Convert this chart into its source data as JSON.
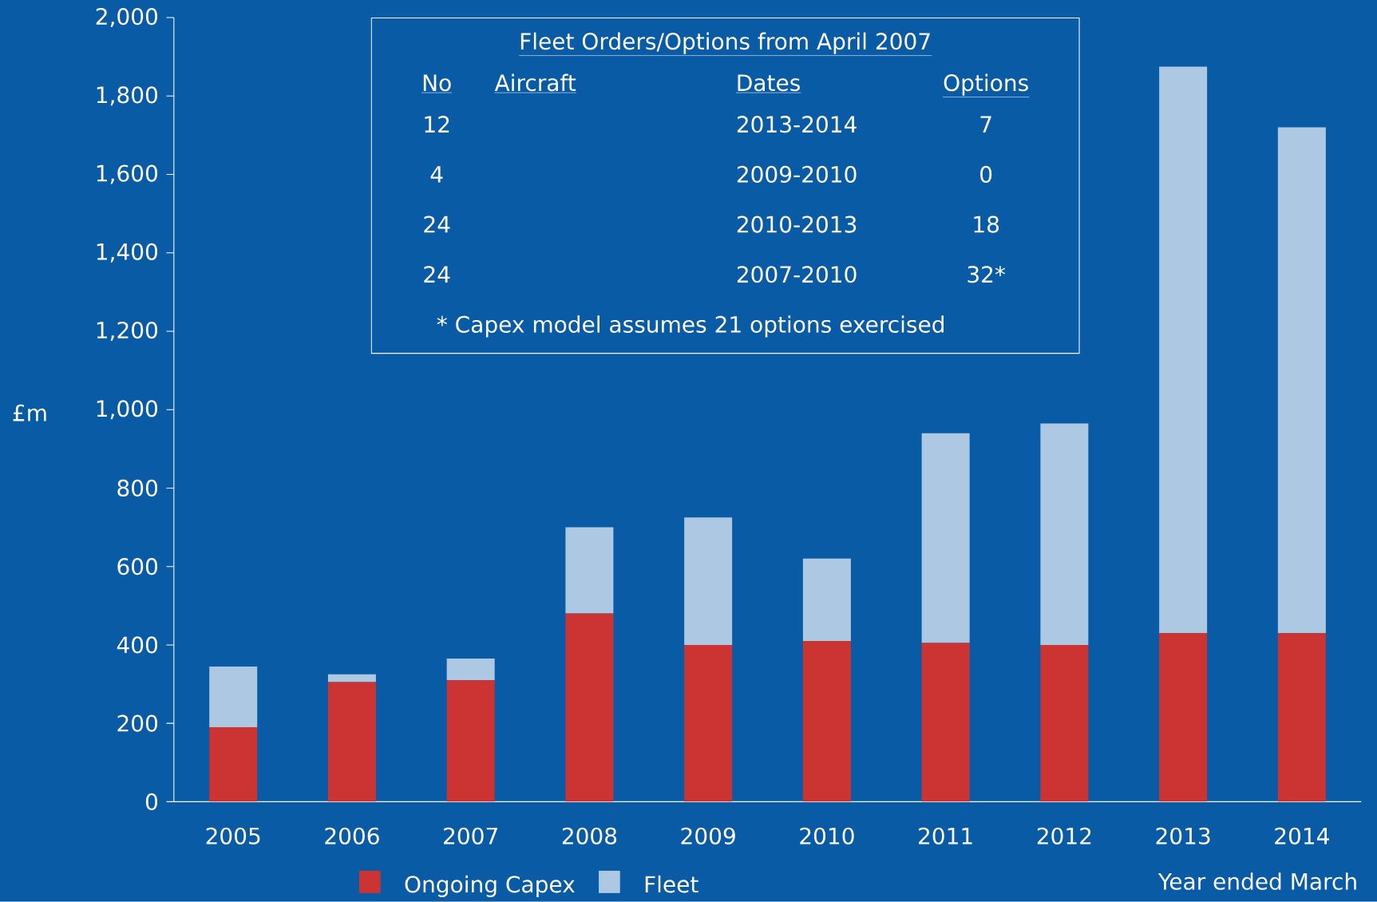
{
  "chart_data": {
    "type": "bar",
    "stacked": true,
    "categories": [
      "2005",
      "2006",
      "2007",
      "2008",
      "2009",
      "2010",
      "2011",
      "2012",
      "2013",
      "2014"
    ],
    "series": [
      {
        "name": "Ongoing Capex",
        "color": "#cc3333",
        "values": [
          190,
          305,
          310,
          480,
          400,
          410,
          405,
          400,
          430,
          430
        ]
      },
      {
        "name": "Fleet",
        "color": "#adc8e2",
        "values": [
          155,
          20,
          55,
          220,
          325,
          210,
          535,
          565,
          1445,
          1290
        ]
      }
    ],
    "ylabel": "£m",
    "xlabel": "Year ended March",
    "ylim": [
      0,
      2000
    ],
    "yticks": [
      0,
      200,
      400,
      600,
      800,
      {
        "value": 1000,
        "label": "1,000"
      },
      {
        "value": 1200,
        "label": "1,200"
      },
      {
        "value": 1400,
        "label": "1,400"
      },
      {
        "value": 1600,
        "label": "1,600"
      },
      {
        "value": 1800,
        "label": "1,800"
      },
      {
        "value": 2000,
        "label": "2,000"
      }
    ],
    "legend": "bottom",
    "grid": false,
    "annotations": [
      "Fleet Orders/Options from April 2007",
      "No",
      "Aircraft",
      "Dates",
      "Options",
      "12",
      "2013-2014",
      "7",
      "4",
      "2009-2010",
      "0",
      "24",
      "2010-2013",
      "18",
      "24",
      "2007-2010",
      "32*",
      "* Capex model assumes 21 options exercised"
    ]
  }
}
